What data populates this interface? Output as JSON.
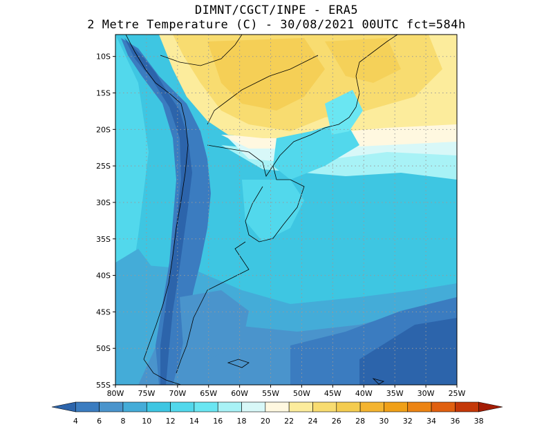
{
  "title": {
    "line1": "DIMNT/CGCT/INPE -  ERA5",
    "line2": "2 Metre Temperature (C) -  30/08/2021 00UTC fct=584h"
  },
  "map": {
    "lon_labels": [
      "80W",
      "75W",
      "70W",
      "65W",
      "60W",
      "55W",
      "50W",
      "45W",
      "40W",
      "35W",
      "30W",
      "25W"
    ],
    "lat_labels": [
      "10S",
      "15S",
      "20S",
      "25S",
      "30S",
      "35S",
      "40S",
      "45S",
      "50S",
      "55S"
    ],
    "lon_range": [
      -80,
      -25
    ],
    "lat_range": [
      -55,
      -7
    ],
    "grid": "dotted"
  },
  "colorbar": {
    "labels": [
      "4",
      "6",
      "8",
      "10",
      "12",
      "14",
      "16",
      "18",
      "20",
      "22",
      "24",
      "26",
      "28",
      "30",
      "32",
      "34",
      "36",
      "38"
    ],
    "colors": [
      "#2c64ab",
      "#3b7cc0",
      "#4a94cc",
      "#44acd8",
      "#3ec6e2",
      "#52d8ec",
      "#6ae6f2",
      "#a8f2f6",
      "#d8f8f8",
      "#fff8e0",
      "#fcec9c",
      "#f8dc70",
      "#f4cc50",
      "#f4b430",
      "#f0a018",
      "#ec8414",
      "#e06010",
      "#c43808",
      "#a41c04"
    ]
  }
}
